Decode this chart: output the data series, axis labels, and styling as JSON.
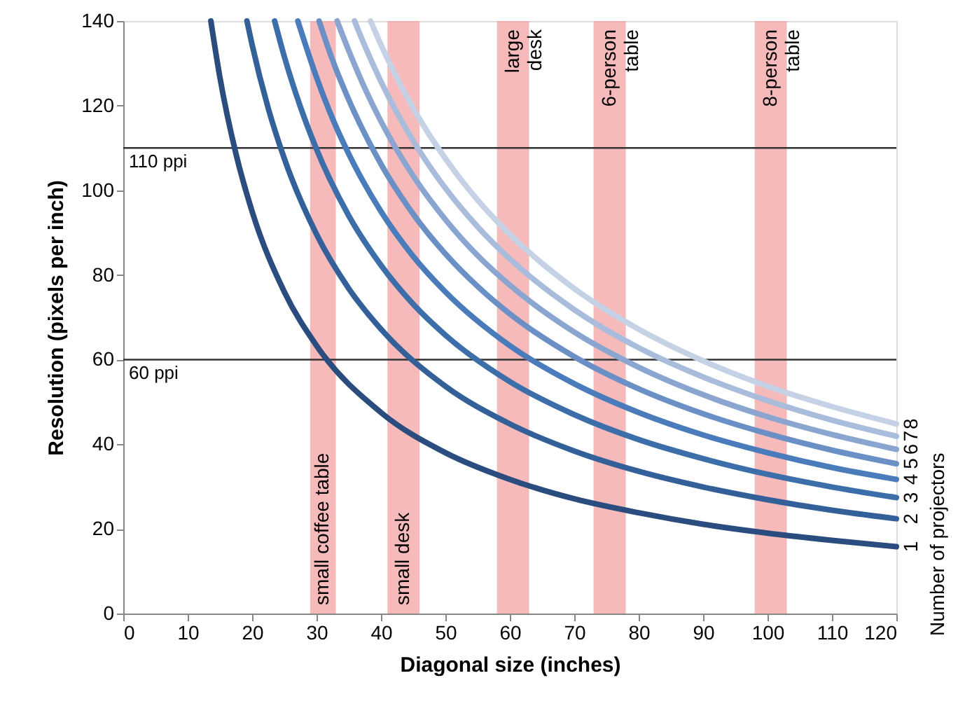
{
  "chart_data": {
    "type": "line",
    "xlabel": "Diagonal size (inches)",
    "ylabel": "Resolution (pixels per inch)",
    "legend_title": "Number of projectors",
    "xlim": [
      0,
      120
    ],
    "xticks": [
      0,
      10,
      20,
      30,
      40,
      50,
      60,
      70,
      80,
      90,
      100,
      110,
      120
    ],
    "ylim": [
      0,
      140
    ],
    "yticks": [
      0,
      20,
      40,
      60,
      80,
      100,
      120,
      140
    ],
    "grid": false,
    "legend": "right",
    "marker": "none",
    "line_style": "solid",
    "series": [
      {
        "name": "1",
        "color": "#2b4c7e",
        "x": [
          13.6,
          15,
          17.5,
          20,
          25,
          30,
          40,
          50,
          60,
          70,
          80,
          90,
          100,
          110,
          120
        ],
        "values": [
          140,
          126.7,
          108.6,
          95,
          76,
          63.3,
          47.5,
          38,
          31.7,
          27.1,
          23.8,
          21.1,
          19,
          17.3,
          15.8
        ]
      },
      {
        "name": "2",
        "color": "#34609a",
        "x": [
          19.2,
          20,
          22.5,
          25,
          30,
          35,
          40,
          50,
          60,
          70,
          80,
          90,
          100,
          110,
          120
        ],
        "values": [
          140,
          134.4,
          119.4,
          107.5,
          89.6,
          76.8,
          67.2,
          53.7,
          44.8,
          38.4,
          33.6,
          29.9,
          26.9,
          24.4,
          22.4
        ]
      },
      {
        "name": "3",
        "color": "#3c6eaa",
        "x": [
          23.5,
          25,
          27.5,
          30,
          35,
          40,
          45,
          50,
          60,
          70,
          80,
          90,
          100,
          110,
          120
        ],
        "values": [
          140,
          131.6,
          119.7,
          109.7,
          94,
          82.3,
          73.1,
          65.8,
          54.8,
          47,
          41.1,
          36.6,
          32.9,
          29.9,
          27.4
        ]
      },
      {
        "name": "4",
        "color": "#4a7bbb",
        "x": [
          27.1,
          30,
          32.5,
          35,
          40,
          45,
          50,
          60,
          70,
          80,
          90,
          100,
          110,
          120
        ],
        "values": [
          140,
          126.7,
          116.9,
          108.6,
          95,
          84.4,
          76,
          63.3,
          54.3,
          47.5,
          42.2,
          38,
          34.5,
          31.7
        ]
      },
      {
        "name": "5",
        "color": "#6a90c6",
        "x": [
          30.4,
          32.5,
          35,
          40,
          45,
          50,
          55,
          60,
          70,
          80,
          90,
          100,
          110,
          120
        ],
        "values": [
          140,
          130.7,
          121.4,
          106.2,
          94.4,
          85,
          77.3,
          70.8,
          60.7,
          53.1,
          47.2,
          42.5,
          38.6,
          35.4
        ]
      },
      {
        "name": "6",
        "color": "#8aa6d0",
        "x": [
          33.2,
          35,
          37.5,
          40,
          45,
          50,
          55,
          60,
          70,
          80,
          90,
          100,
          110,
          120
        ],
        "values": [
          140,
          133,
          124.1,
          116.3,
          103.4,
          93.1,
          84.6,
          77.6,
          66.5,
          58.2,
          51.7,
          46.5,
          42.3,
          38.8
        ]
      },
      {
        "name": "7",
        "color": "#a9bcdb",
        "x": [
          35.9,
          37.5,
          40,
          45,
          50,
          55,
          60,
          70,
          80,
          90,
          100,
          110,
          120
        ],
        "values": [
          140,
          134.1,
          125.7,
          111.7,
          100.5,
          91.4,
          83.8,
          71.8,
          62.8,
          55.9,
          50.3,
          45.7,
          41.9
        ]
      },
      {
        "name": "8",
        "color": "#c5d1e5",
        "x": [
          38.4,
          40,
          42.5,
          45,
          50,
          55,
          60,
          70,
          80,
          90,
          100,
          110,
          120
        ],
        "values": [
          140,
          134.4,
          126.5,
          119.4,
          107.5,
          97.7,
          89.6,
          76.8,
          67.2,
          59.7,
          53.7,
          48.9,
          44.8
        ]
      }
    ],
    "ref_lines": [
      {
        "axis": "y",
        "value": 110,
        "label": "110 ppi",
        "color": "#333333"
      },
      {
        "axis": "y",
        "value": 60,
        "label": "60 ppi",
        "color": "#333333"
      }
    ],
    "bands": [
      {
        "axis": "x",
        "from": 29,
        "to": 33,
        "label": "small coffee table",
        "color": "#f4a3a3"
      },
      {
        "axis": "x",
        "from": 41,
        "to": 46,
        "label": "small desk",
        "color": "#f4a3a3"
      },
      {
        "axis": "x",
        "from": 58,
        "to": 63,
        "label": "large\ndesk",
        "color": "#f4a3a3"
      },
      {
        "axis": "x",
        "from": 73,
        "to": 78,
        "label": "6-person\ntable",
        "color": "#f4a3a3"
      },
      {
        "axis": "x",
        "from": 98,
        "to": 103,
        "label": "8-person\ntable",
        "color": "#f4a3a3"
      }
    ]
  }
}
